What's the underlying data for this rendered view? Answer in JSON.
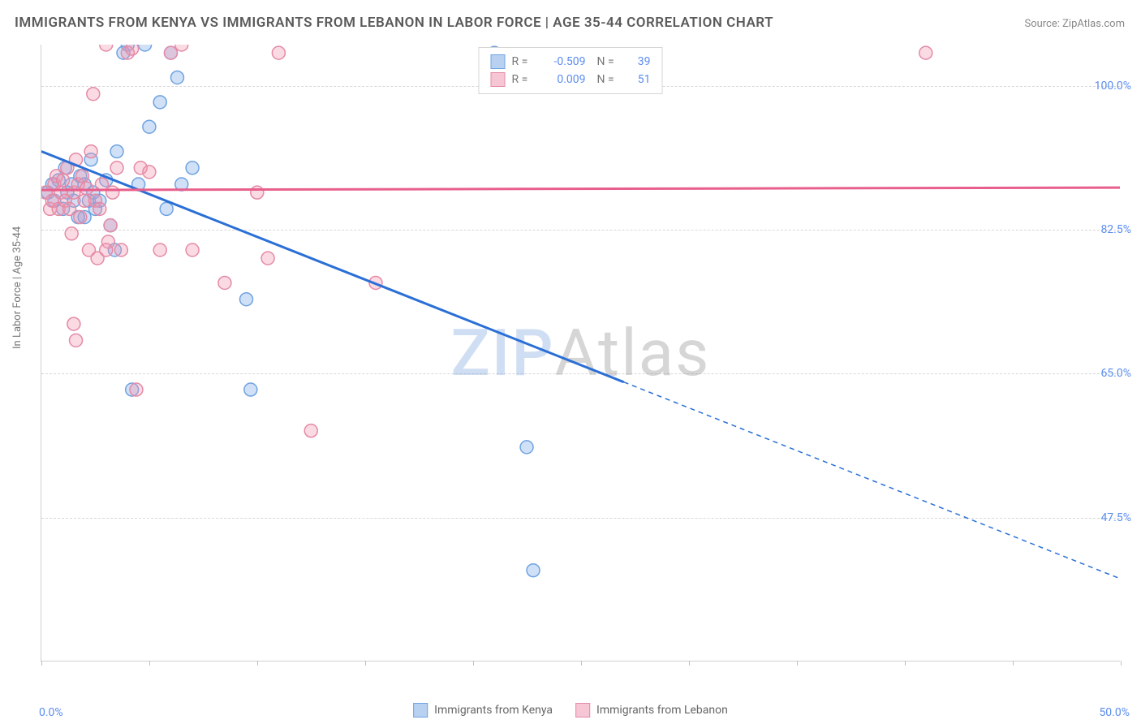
{
  "title": "IMMIGRANTS FROM KENYA VS IMMIGRANTS FROM LEBANON IN LABOR FORCE | AGE 35-44 CORRELATION CHART",
  "source_label": "Source: ",
  "source_name": "ZipAtlas.com",
  "ylabel": "In Labor Force | Age 35-44",
  "watermark_a": "ZIP",
  "watermark_b": "Atlas",
  "chart": {
    "type": "scatter",
    "background_color": "#ffffff",
    "grid_color": "#d8d8d8",
    "axis_color": "#d0d0d0",
    "tick_color": "#c0c0c0",
    "label_color": "#5b8def",
    "xlim": [
      0,
      50
    ],
    "ylim": [
      30,
      105
    ],
    "ytick_values": [
      47.5,
      65.0,
      82.5,
      100.0
    ],
    "ytick_labels": [
      "47.5%",
      "65.0%",
      "82.5%",
      "100.0%"
    ],
    "xtick_values": [
      0,
      5,
      10,
      15,
      20,
      25,
      30,
      35,
      40,
      45,
      50
    ],
    "xtick_left_label": "0.0%",
    "xtick_right_label": "50.0%",
    "series": [
      {
        "name": "Immigrants from Kenya",
        "color_fill": "rgba(120,168,232,0.35)",
        "color_stroke": "#6fa3e0",
        "swatch_fill": "#b8d1f0",
        "swatch_border": "#6fa3e0",
        "trend_color": "#2a6fd6",
        "marker_radius": 8,
        "R": "-0.509",
        "N": "39",
        "trend": {
          "x1": 0,
          "y1": 92,
          "x2": 50,
          "y2": 40,
          "solid_until_x": 27
        },
        "points": [
          [
            0.3,
            87
          ],
          [
            0.5,
            88
          ],
          [
            0.6,
            86
          ],
          [
            0.8,
            88.5
          ],
          [
            1.0,
            85
          ],
          [
            1.1,
            90
          ],
          [
            1.2,
            87
          ],
          [
            1.4,
            88
          ],
          [
            1.5,
            86
          ],
          [
            1.7,
            84
          ],
          [
            1.8,
            89
          ],
          [
            2.0,
            88
          ],
          [
            2.0,
            84
          ],
          [
            2.2,
            86
          ],
          [
            2.3,
            91
          ],
          [
            2.4,
            87
          ],
          [
            2.5,
            85
          ],
          [
            2.7,
            86
          ],
          [
            3.0,
            88.5
          ],
          [
            3.2,
            83
          ],
          [
            3.4,
            80
          ],
          [
            3.8,
            104
          ],
          [
            4.0,
            105
          ],
          [
            4.8,
            105
          ],
          [
            5.0,
            95
          ],
          [
            5.5,
            98
          ],
          [
            4.2,
            63
          ],
          [
            6.0,
            104
          ],
          [
            6.3,
            101
          ],
          [
            6.5,
            88
          ],
          [
            7.0,
            90
          ],
          [
            9.5,
            74
          ],
          [
            9.7,
            63
          ],
          [
            21.0,
            104
          ],
          [
            22.5,
            56
          ],
          [
            22.8,
            41
          ],
          [
            4.5,
            88
          ],
          [
            5.8,
            85
          ],
          [
            3.5,
            92
          ]
        ]
      },
      {
        "name": "Immigrants from Lebanon",
        "color_fill": "rgba(240,150,175,0.35)",
        "color_stroke": "#e58aa6",
        "swatch_fill": "#f6c6d5",
        "swatch_border": "#e58aa6",
        "trend_color": "#e85f8b",
        "marker_radius": 8,
        "R": "0.009",
        "N": "51",
        "trend": {
          "x1": 0,
          "y1": 87.3,
          "x2": 50,
          "y2": 87.6,
          "solid_until_x": 50
        },
        "points": [
          [
            0.2,
            87
          ],
          [
            0.4,
            85
          ],
          [
            0.5,
            86
          ],
          [
            0.6,
            88
          ],
          [
            0.7,
            89
          ],
          [
            0.8,
            85
          ],
          [
            0.9,
            87
          ],
          [
            1.0,
            88.5
          ],
          [
            1.1,
            86
          ],
          [
            1.2,
            90
          ],
          [
            1.3,
            85
          ],
          [
            1.4,
            82
          ],
          [
            1.5,
            87
          ],
          [
            1.6,
            91
          ],
          [
            1.7,
            88
          ],
          [
            1.8,
            84
          ],
          [
            1.9,
            89
          ],
          [
            2.0,
            86
          ],
          [
            2.1,
            87.5
          ],
          [
            2.2,
            80
          ],
          [
            2.3,
            92
          ],
          [
            2.4,
            99
          ],
          [
            2.5,
            86
          ],
          [
            2.6,
            79
          ],
          [
            2.8,
            88
          ],
          [
            3.0,
            105
          ],
          [
            3.1,
            81
          ],
          [
            3.3,
            87
          ],
          [
            3.5,
            90
          ],
          [
            3.7,
            80
          ],
          [
            1.5,
            71
          ],
          [
            1.6,
            69
          ],
          [
            4.0,
            104
          ],
          [
            4.2,
            104.5
          ],
          [
            4.4,
            63
          ],
          [
            4.6,
            90
          ],
          [
            5.0,
            89.5
          ],
          [
            5.5,
            80
          ],
          [
            6.0,
            104
          ],
          [
            6.5,
            105
          ],
          [
            7.0,
            80
          ],
          [
            3.0,
            80
          ],
          [
            8.5,
            76
          ],
          [
            10.0,
            87
          ],
          [
            10.5,
            79
          ],
          [
            11.0,
            104
          ],
          [
            12.5,
            58
          ],
          [
            15.5,
            76
          ],
          [
            41.0,
            104
          ],
          [
            2.7,
            85
          ],
          [
            3.2,
            83
          ]
        ]
      }
    ],
    "legend_bottom": [
      {
        "label": "Immigrants from Kenya",
        "swatch_fill": "#b8d1f0",
        "swatch_border": "#6fa3e0"
      },
      {
        "label": "Immigrants from Lebanon",
        "swatch_fill": "#f6c6d5",
        "swatch_border": "#e58aa6"
      }
    ]
  }
}
